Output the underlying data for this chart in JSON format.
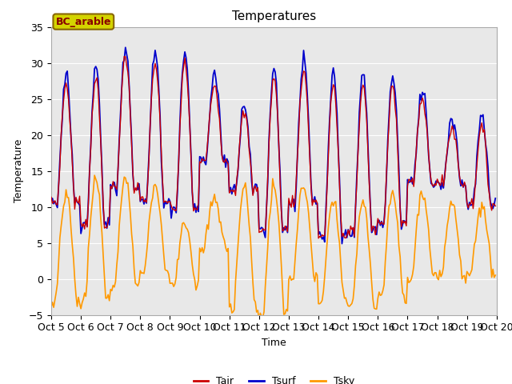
{
  "title": "Temperatures",
  "xlabel": "Time",
  "ylabel": "Temperature",
  "ylim": [
    -5,
    35
  ],
  "x_tick_labels": [
    "Oct 5",
    "Oct 6",
    "Oct 7",
    "Oct 8",
    "Oct 9",
    "Oct 10",
    "Oct 11",
    "Oct 12",
    "Oct 13",
    "Oct 14",
    "Oct 15",
    "Oct 16",
    "Oct 17",
    "Oct 18",
    "Oct 19",
    "Oct 20"
  ],
  "legend_label": "BC_arable",
  "series_labels": [
    "Tair",
    "Tsurf",
    "Tsky"
  ],
  "colors": {
    "Tair": "#cc0000",
    "Tsurf": "#0000cc",
    "Tsky": "#ff9900"
  },
  "bg_color": "#e8e8e8",
  "legend_box_facecolor": "#d4d400",
  "legend_box_edgecolor": "#886600",
  "legend_text_color": "#880000",
  "yticks": [
    -5,
    0,
    5,
    10,
    15,
    20,
    25,
    30,
    35
  ],
  "n_days": 15,
  "n_per_day": 24
}
